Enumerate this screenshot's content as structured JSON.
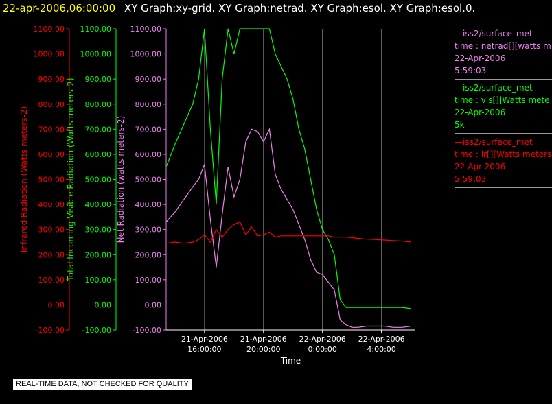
{
  "header": {
    "timestamp": "22-apr-2006,06:00:00",
    "graphs": "XY Graph:xy-grid.  XY Graph:netrad.  XY Graph:esol.  XY Graph:esol.0."
  },
  "legend": [
    {
      "line1": "—iss2/surface_met",
      "line2": "time : netrad[][watts m",
      "line3": "22-Apr-2006",
      "line4": "5:59:03",
      "color": "#ee82ee"
    },
    {
      "line1": "—iss2/surface_met",
      "line2": "time : vis[][Watts mete",
      "line3": "22-Apr-2006",
      "line4": "5k",
      "color": "#00ff00"
    },
    {
      "line1": "—iss2/surface_met",
      "line2": "time : ir[][Watts meters",
      "line3": "22-Apr-2006",
      "line4": "5:59:03",
      "color": "#ff0000"
    }
  ],
  "notice": "REAL-TIME DATA, NOT CHECKED FOR QUALITY",
  "chart_data": {
    "type": "line",
    "xlabel": "Time",
    "x_ticks": [
      {
        "hours": 16,
        "line1": "21-Apr-2006",
        "line2": "16:00:00"
      },
      {
        "hours": 20,
        "line1": "21-Apr-2006",
        "line2": "20:00:00"
      },
      {
        "hours": 24,
        "line1": "22-Apr-2006",
        "line2": "0:00:00"
      },
      {
        "hours": 28,
        "line1": "22-Apr-2006",
        "line2": "4:00:00"
      }
    ],
    "xlim": [
      13.4,
      30.3
    ],
    "ylim": [
      -100,
      1100
    ],
    "y_ticks": [
      "1100.00",
      "1000.00",
      "900.00",
      "800.00",
      "700.00",
      "600.00",
      "500.00",
      "400.00",
      "300.00",
      "200.00",
      "100.00",
      "0.00",
      "-100.00"
    ],
    "axes": [
      {
        "label": "Infrared Radiation (Watts meters-2)",
        "color": "#ff0000"
      },
      {
        "label": "Total Incoming Visible Radiation (Watts meters-2)",
        "color": "#00ff00"
      },
      {
        "label": "Net Radiation (watts meters-2)",
        "color": "#ee82ee"
      }
    ],
    "series": [
      {
        "name": "netrad",
        "color": "#ee82ee",
        "x": [
          13.4,
          14.0,
          14.6,
          15.2,
          15.6,
          16.0,
          16.4,
          16.8,
          17.2,
          17.6,
          18.0,
          18.4,
          18.8,
          19.2,
          19.6,
          20.0,
          20.4,
          20.8,
          21.2,
          21.6,
          22.0,
          22.4,
          22.8,
          23.2,
          23.6,
          24.0,
          24.4,
          24.8,
          25.2,
          25.6,
          26.0,
          26.4,
          27.0,
          27.6,
          28.2,
          28.8,
          29.4,
          30.0
        ],
        "y": [
          330,
          370,
          420,
          470,
          500,
          560,
          340,
          150,
          360,
          550,
          430,
          500,
          650,
          700,
          690,
          650,
          700,
          520,
          460,
          420,
          380,
          320,
          260,
          180,
          130,
          120,
          90,
          60,
          -60,
          -80,
          -90,
          -90,
          -85,
          -85,
          -85,
          -90,
          -90,
          -85
        ]
      },
      {
        "name": "vis",
        "color": "#00ff00",
        "x": [
          13.4,
          14.0,
          14.6,
          15.2,
          15.6,
          16.0,
          16.4,
          16.8,
          17.2,
          17.6,
          18.0,
          18.4,
          18.8,
          19.2,
          19.6,
          20.0,
          20.4,
          20.8,
          21.2,
          21.6,
          22.0,
          22.4,
          22.8,
          23.2,
          23.6,
          24.0,
          24.4,
          24.8,
          25.2,
          25.6,
          26.0,
          26.4,
          27.0,
          27.6,
          28.2,
          28.8,
          29.4,
          30.0
        ],
        "y": [
          550,
          640,
          720,
          800,
          900,
          1100,
          700,
          400,
          900,
          1100,
          1000,
          1100,
          1100,
          1100,
          1100,
          1100,
          1100,
          1000,
          950,
          900,
          820,
          700,
          620,
          500,
          380,
          300,
          260,
          200,
          20,
          -10,
          -10,
          -10,
          -10,
          -10,
          -10,
          -10,
          -10,
          -15
        ]
      },
      {
        "name": "ir",
        "color": "#ff0000",
        "x": [
          13.4,
          14.0,
          14.6,
          15.2,
          15.6,
          16.0,
          16.4,
          16.8,
          17.2,
          17.6,
          18.0,
          18.4,
          18.8,
          19.2,
          19.6,
          20.0,
          20.4,
          20.8,
          21.2,
          21.6,
          22.0,
          22.4,
          22.8,
          23.2,
          23.6,
          24.0,
          24.4,
          24.8,
          25.2,
          25.6,
          26.0,
          26.4,
          27.0,
          27.6,
          28.2,
          28.8,
          29.4,
          30.0
        ],
        "y": [
          245,
          250,
          245,
          250,
          260,
          280,
          250,
          300,
          270,
          300,
          320,
          330,
          280,
          310,
          275,
          280,
          290,
          270,
          275,
          275,
          275,
          275,
          275,
          275,
          275,
          275,
          275,
          270,
          270,
          270,
          268,
          265,
          262,
          260,
          258,
          256,
          254,
          250
        ]
      }
    ]
  }
}
